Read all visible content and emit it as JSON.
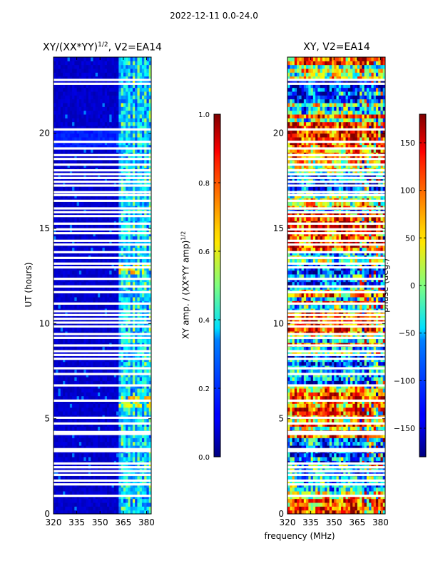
{
  "header": {
    "suptitle": "2022-12-11 0.0-24.0"
  },
  "colors": {
    "jet_low": "#00007f",
    "jet_mid": "#7fff7f",
    "jet_high": "#7f0000",
    "gap": "#ffffff",
    "axis": "#000000"
  },
  "chart_data": [
    {
      "type": "heatmap",
      "title_main": "XY/(XX*YY)",
      "title_sup": "1/2",
      "title_tail": ", V2=EA14",
      "ylabel": "UT (hours)",
      "xlabel": "",
      "xlim": [
        320,
        383
      ],
      "ylim": [
        0,
        24
      ],
      "xticks": [
        320,
        335,
        350,
        365,
        380
      ],
      "yticks": [
        0,
        5,
        10,
        15,
        20
      ],
      "quantity": "amplitude",
      "empty_rows_hours": [
        0.95,
        1.55,
        1.75,
        2.05,
        2.25,
        2.45,
        2.65,
        3.3,
        3.4,
        4.2,
        4.3,
        4.75,
        5.05,
        5.95,
        6.75,
        7.35,
        7.65,
        8.15,
        8.35,
        8.55,
        8.85,
        9.25,
        9.45,
        9.85,
        10.05,
        10.25,
        10.45,
        10.65,
        11.05,
        11.65,
        11.95,
        12.35,
        12.95,
        13.15,
        13.45,
        13.75,
        14.15,
        14.35,
        14.75,
        14.95,
        15.25,
        15.65,
        15.85,
        16.05,
        16.45,
        16.75,
        16.9,
        17.25,
        17.45,
        17.65,
        17.85,
        18.05,
        18.35,
        18.65,
        18.85,
        19.2,
        19.55,
        20.2,
        22.6,
        22.8
      ],
      "colorbar": {
        "label_main": "XY amp. / (XX*YY amp)",
        "label_sup": "1/2",
        "range": [
          0.0,
          1.0
        ],
        "ticks": [
          0.0,
          0.2,
          0.4,
          0.6,
          0.8,
          1.0
        ],
        "tick_labels": [
          "0.0",
          "0.2",
          "0.4",
          "0.6",
          "0.8",
          "1.0"
        ]
      }
    },
    {
      "type": "heatmap",
      "title": "XY, V2=EA14",
      "ylabel": "",
      "xlabel": "frequency (MHz)",
      "xlim": [
        320,
        383
      ],
      "ylim": [
        0,
        24
      ],
      "xticks": [
        320,
        335,
        350,
        365,
        380
      ],
      "yticks": [
        0,
        5,
        10,
        15,
        20
      ],
      "quantity": "phase",
      "empty_rows_hours": [
        0.95,
        1.55,
        1.75,
        2.05,
        2.25,
        2.45,
        2.65,
        3.3,
        3.4,
        4.2,
        4.3,
        4.75,
        5.05,
        5.95,
        6.75,
        7.35,
        7.65,
        8.15,
        8.35,
        8.55,
        8.85,
        9.25,
        9.45,
        9.85,
        10.05,
        10.25,
        10.45,
        10.65,
        11.05,
        11.65,
        11.95,
        12.35,
        12.95,
        13.15,
        13.45,
        13.75,
        14.15,
        14.35,
        14.75,
        14.95,
        15.25,
        15.65,
        15.85,
        16.05,
        16.45,
        16.75,
        16.9,
        17.25,
        17.45,
        17.65,
        17.85,
        18.05,
        18.35,
        18.65,
        18.85,
        19.2,
        19.55,
        20.2,
        22.6,
        22.8
      ],
      "colorbar": {
        "label": "phase (deg.)",
        "range": [
          -180,
          180
        ],
        "ticks": [
          -150,
          -100,
          -50,
          0,
          50,
          100,
          150
        ],
        "tick_labels": [
          "−150",
          "−100",
          "−50",
          "0",
          "50",
          "100",
          "150"
        ]
      }
    }
  ]
}
